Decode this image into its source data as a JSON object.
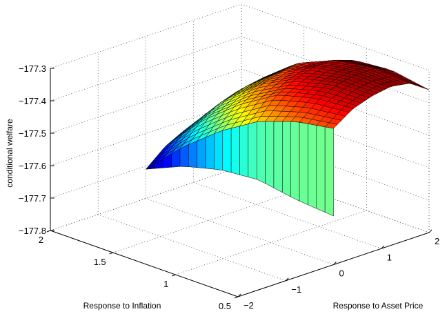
{
  "chart_data": {
    "type": "surface",
    "zlabel": "conditional welfare",
    "xlabel": "Response to Asset Price",
    "ylabel": "Response to Inflation",
    "xlim": [
      -2,
      2
    ],
    "ylim": [
      0.5,
      2
    ],
    "zlim": [
      -177.8,
      -177.3
    ],
    "x_ticks": [
      "−2",
      "−1",
      "0",
      "1",
      "2"
    ],
    "y_ticks": [
      "0.5",
      "1",
      "1.5",
      "2"
    ],
    "z_ticks": [
      "−177.3",
      "−177.4",
      "−177.5",
      "−177.6",
      "−177.7",
      "−177.8"
    ],
    "grid": true,
    "colormap": "jet",
    "surface": {
      "description_of_axes": "x = response to asset price (0 to 2), y = response to inflation (0.5 to 2)",
      "x": [
        0,
        0.4,
        0.8,
        1.2,
        1.6,
        2.0
      ],
      "y": [
        2.0,
        1.7,
        1.4,
        1.1,
        0.8,
        0.5
      ],
      "z": [
        [
          -177.71,
          -177.66,
          -177.63,
          -177.61,
          -177.61,
          -177.62
        ],
        [
          -177.6,
          -177.54,
          -177.5,
          -177.48,
          -177.47,
          -177.49
        ],
        [
          -177.51,
          -177.45,
          -177.41,
          -177.39,
          -177.38,
          -177.4
        ],
        [
          -177.44,
          -177.38,
          -177.35,
          -177.33,
          -177.33,
          -177.35
        ],
        [
          -177.4,
          -177.35,
          -177.32,
          -177.31,
          -177.31,
          -177.34
        ],
        [
          -177.38,
          -177.34,
          -177.32,
          -177.31,
          -177.32,
          -177.36
        ]
      ],
      "cliff_z_at_x0": [
        -177.71,
        -177.66,
        -177.63,
        -177.62,
        -177.64,
        -177.65
      ]
    }
  }
}
